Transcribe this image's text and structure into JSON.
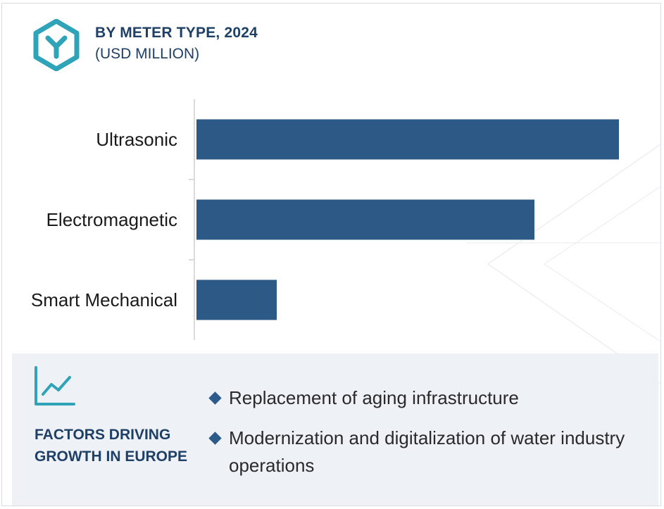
{
  "header": {
    "title": "BY METER TYPE, 2024",
    "subtitle": "(USD MILLION)",
    "logo_icon": "hexagon-y-logo-icon"
  },
  "colors": {
    "bar": "#2d5986",
    "heading": "#1e3f66",
    "accent": "#2fa3b8",
    "panel_bg": "#eef1f6"
  },
  "chart_data": {
    "type": "bar",
    "orientation": "horizontal",
    "categories": [
      "Ultrasonic",
      "Electromagnetic",
      "Smart Mechanical"
    ],
    "values": [
      100,
      80,
      19
    ],
    "title": "BY METER TYPE, 2024",
    "subtitle": "(USD MILLION)",
    "xlabel": "",
    "ylabel": "",
    "xlim": [
      0,
      100
    ],
    "grid": false,
    "legend": "none"
  },
  "factors": {
    "icon": "trend-chart-icon",
    "heading": "FACTORS DRIVING GROWTH IN EUROPE",
    "items": [
      "Replacement of aging infrastructure",
      "Modernization and digitalization of water industry operations"
    ]
  }
}
